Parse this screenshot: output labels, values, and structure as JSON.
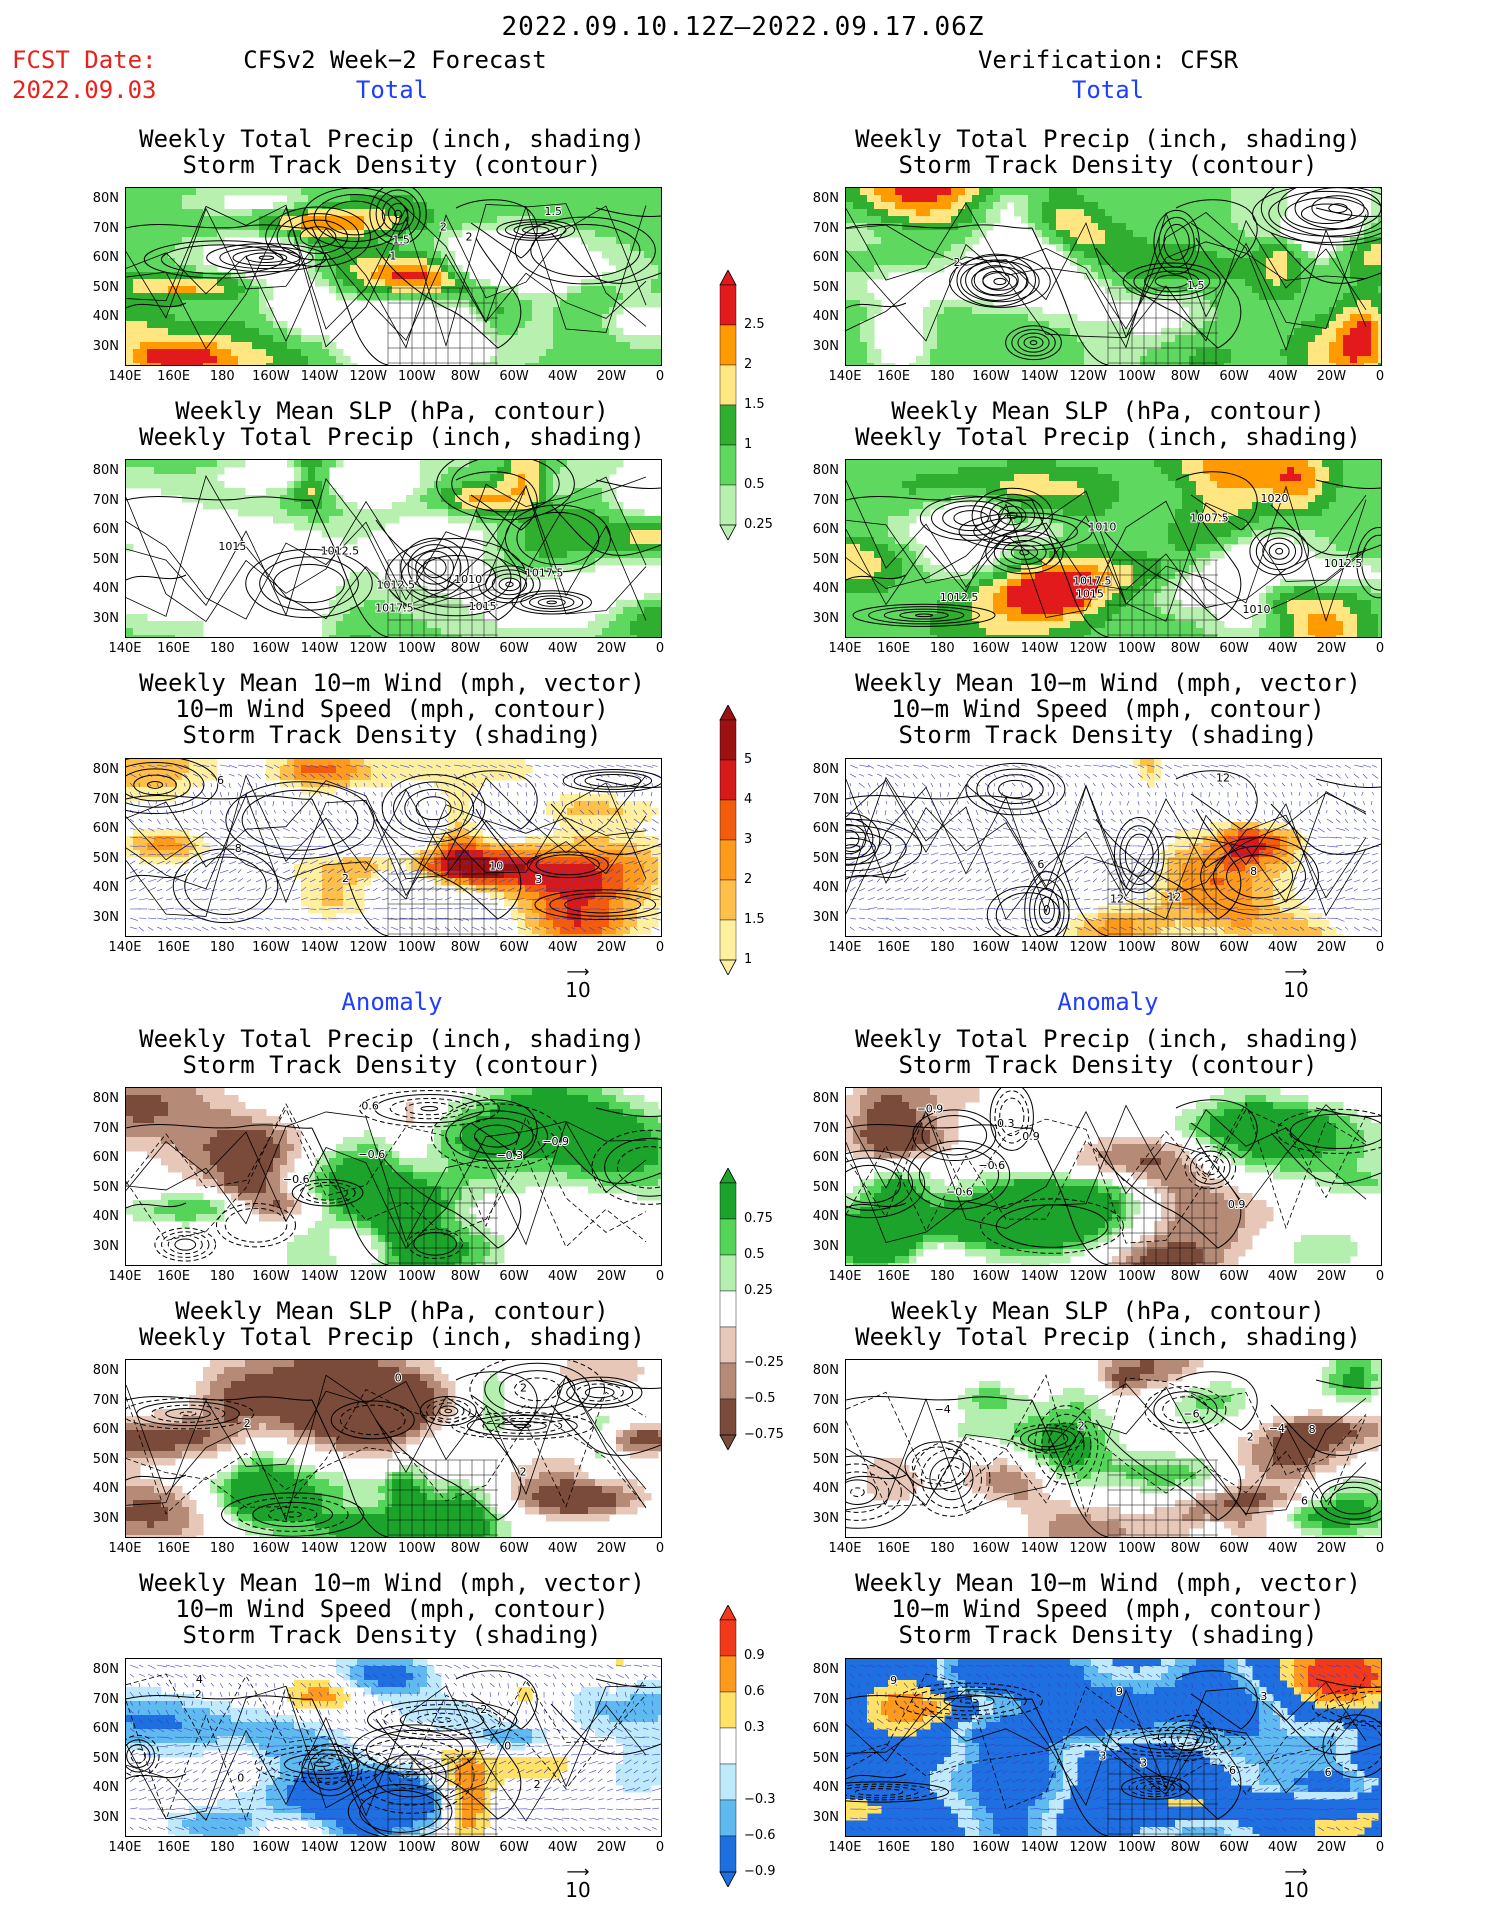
{
  "header": {
    "date_range": "2022.09.10.12Z—2022.09.17.06Z",
    "fcst_label": "FCST Date:",
    "fcst_date": "2022.09.03",
    "left_title": "CFSv2 Week−2 Forecast",
    "right_title": "Verification: CFSR"
  },
  "sections": {
    "total": "Total",
    "anomaly": "Anomaly"
  },
  "panel_titles": {
    "precip_storm": [
      "Weekly Total Precip (inch, shading)",
      "Storm Track Density (contour)"
    ],
    "slp_precip": [
      "Weekly Mean SLP (hPa, contour)",
      "Weekly Total Precip (inch, shading)"
    ],
    "wind_storm": [
      "Weekly Mean 10−m Wind (mph, vector)",
      "10−m Wind Speed (mph, contour)",
      "Storm Track Density (shading)"
    ]
  },
  "axes": {
    "lat_labels": [
      "80N",
      "70N",
      "60N",
      "50N",
      "40N",
      "30N"
    ],
    "lon_labels": [
      "140E",
      "160E",
      "180",
      "160W",
      "140W",
      "120W",
      "100W",
      "80W",
      "60W",
      "40W",
      "20W",
      "0"
    ]
  },
  "vector_ref": "10",
  "colorbars": {
    "precip_total": {
      "labels": [
        "2.5",
        "2",
        "1.5",
        "1",
        "0.5",
        "0.25"
      ],
      "colors": [
        "#e31a1c",
        "#ff9a00",
        "#ffe680",
        "#2fae2f",
        "#5fd85f",
        "#b8f0b0"
      ]
    },
    "storm_total": {
      "labels": [
        "5",
        "4",
        "3",
        "2",
        "1.5",
        "1"
      ],
      "colors": [
        "#9c1111",
        "#d61a1a",
        "#f25c0c",
        "#ff9a1a",
        "#ffc04a",
        "#fff0a0"
      ]
    },
    "precip_anom": {
      "labels": [
        "0.75",
        "0.5",
        "0.25",
        "−0.25",
        "−0.5",
        "−0.75"
      ],
      "colors": [
        "#1ca32b",
        "#55d45a",
        "#b4efb0",
        "#ffffff",
        "#e7c7b8",
        "#b58b78",
        "#7a4a3a"
      ]
    },
    "storm_anom": {
      "labels": [
        "0.9",
        "0.6",
        "0.3",
        "−0.3",
        "−0.6",
        "−0.9"
      ],
      "colors": [
        "#f23a1a",
        "#ff9a1a",
        "#ffe266",
        "#ffffff",
        "#bfeafb",
        "#5fbaf0",
        "#1e70e0"
      ]
    }
  },
  "contour_labels": {
    "l_precip_total": [
      "2",
      "1.5",
      "1",
      "2",
      "1.5"
    ],
    "l_slp_total": [
      "1015",
      "1012.5",
      "1017.5",
      "1017.5",
      "1015",
      "1012.5",
      "1010"
    ],
    "l_wind_total": [
      "10",
      "8",
      "6",
      "2",
      "3"
    ],
    "r_precip_total": [
      "1.5",
      "2"
    ],
    "r_slp_total": [
      "1007.5",
      "1020",
      "1010",
      "1015",
      "1012.5",
      "1012.5",
      "1010",
      "1017.5"
    ],
    "r_wind_total": [
      "12",
      "12",
      "8",
      "6",
      "12"
    ],
    "l_precip_anom": [
      "−0.3",
      "−0.9",
      "−0.6",
      "−0.6",
      "0.6"
    ],
    "l_slp_anom": [
      "2",
      "0",
      "2",
      "2"
    ],
    "l_wind_anom": [
      "2",
      "0",
      "4",
      "2",
      "0",
      "2"
    ],
    "r_precip_anom": [
      "0.9",
      "−0.6",
      "−0.9",
      "−0.6",
      "0.3",
      "0.9"
    ],
    "r_slp_anom": [
      "2",
      "−4",
      "2",
      "−4",
      "8",
      "6",
      "−6"
    ],
    "r_wind_anom": [
      "3",
      "9",
      "6",
      "9",
      "3",
      "3",
      "6"
    ]
  }
}
